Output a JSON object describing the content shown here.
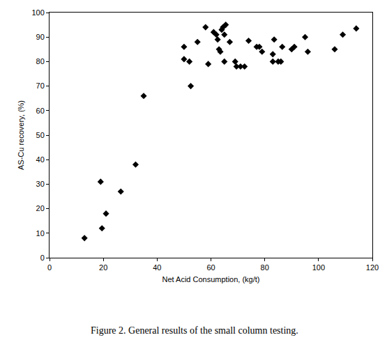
{
  "chart_data": {
    "type": "scatter",
    "caption": "Figure 2. General results of the small column testing.",
    "x_label": "Net Acid Consumption, (kg/t)",
    "y_label": "AS-Cu recovery, (%)",
    "x": [
      13,
      19,
      19.5,
      21,
      26.5,
      32,
      35,
      50,
      50,
      52,
      52.5,
      55,
      58,
      59,
      61,
      62,
      62.5,
      63,
      63.5,
      64,
      64.5,
      65,
      65,
      65.5,
      67,
      69,
      69.5,
      71,
      72.5,
      74,
      77,
      78,
      79,
      83,
      83,
      83.5,
      85,
      86,
      86.5,
      90,
      91,
      95,
      96,
      106,
      109,
      114
    ],
    "values": [
      8,
      31,
      12,
      18,
      27,
      38,
      66,
      86,
      81,
      80,
      70,
      88,
      94,
      79,
      92,
      91,
      89,
      85,
      84,
      93,
      94,
      91,
      80,
      95,
      88,
      80,
      78,
      78,
      78,
      88.5,
      86,
      86,
      84,
      83,
      80,
      89,
      80,
      80,
      86,
      85,
      86,
      90,
      84,
      85,
      91,
      93.5
    ],
    "color": "#000000",
    "marker": "diamond",
    "xlim": [
      0,
      120
    ],
    "xticks": [
      0,
      20,
      40,
      60,
      80,
      100,
      120
    ],
    "ylim": [
      0,
      100
    ],
    "yticks": [
      0,
      10,
      20,
      30,
      40,
      50,
      60,
      70,
      80,
      90,
      100
    ],
    "grid": false
  }
}
